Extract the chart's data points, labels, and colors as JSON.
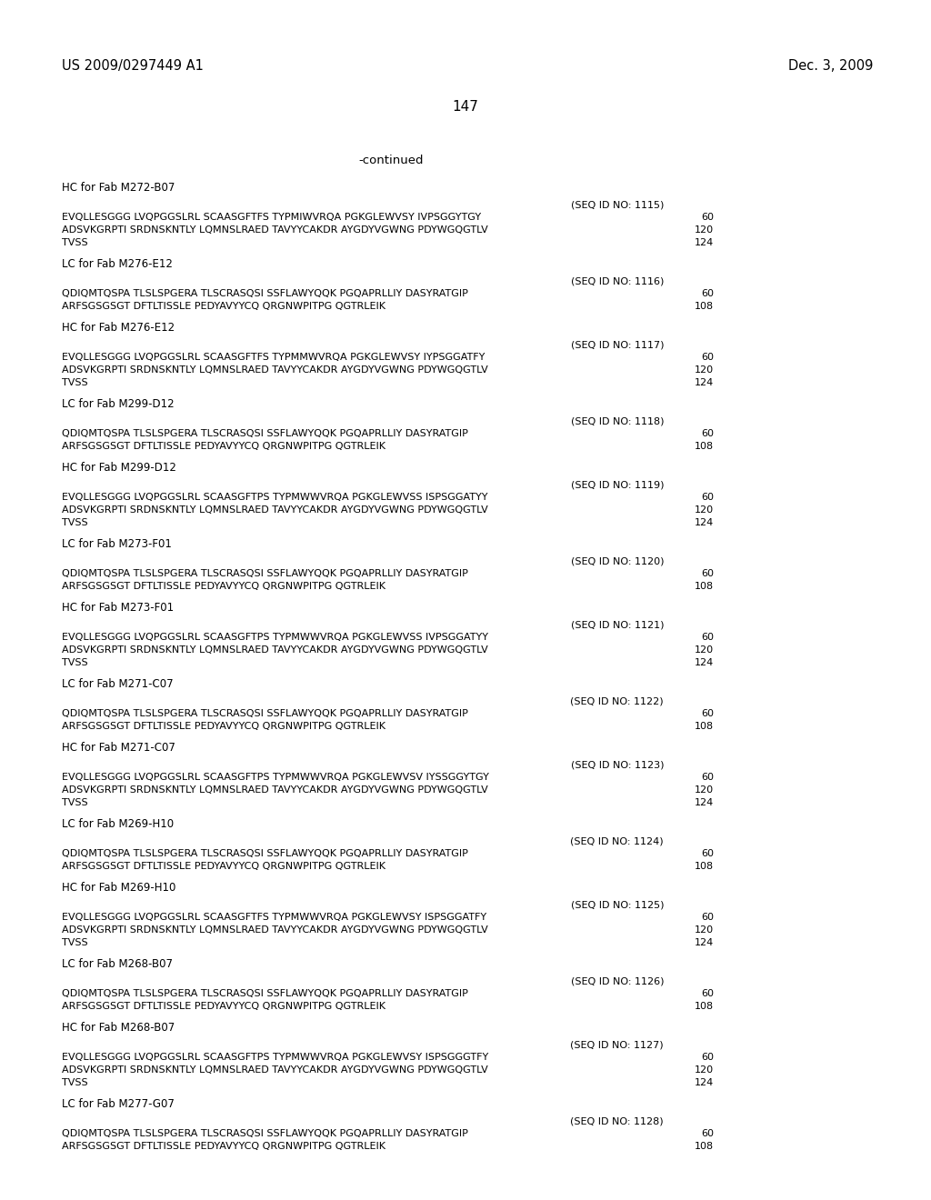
{
  "patent_number": "US 2009/0297449 A1",
  "date": "Dec. 3, 2009",
  "page_number": "147",
  "continued": "-continued",
  "background_color": "#ffffff",
  "text_color": "#000000",
  "sections": [
    {
      "header": "HC for Fab M272-B07",
      "seq_id": "(SEQ ID NO: 1115)",
      "lines": [
        {
          "text": "EVQLLESGGG LVQPGGSLRL SCAASGFTFS TYPMIWVRQA PGKGLEWVSY IVPSGGYTGY",
          "num": "60"
        },
        {
          "text": "ADSVKGRPTI SRDNSKNTLY LQMNSLRAED TAVYYCAKDR AYGDYVGWNG PDYWGQGTLV",
          "num": "120"
        },
        {
          "text": "TVSS",
          "num": "124"
        }
      ]
    },
    {
      "header": "LC for Fab M276-E12",
      "seq_id": "(SEQ ID NO: 1116)",
      "lines": [
        {
          "text": "QDIQMTQSPA TLSLSPGERA TLSCRASQSI SSFLAWYQQK PGQAPRLLIY DASYRATGIP",
          "num": "60"
        },
        {
          "text": "ARFSGSGSGT DFTLTISSLE PEDYAVYYCQ QRGNWPITPG QGTRLEIK",
          "num": "108"
        }
      ]
    },
    {
      "header": "HC for Fab M276-E12",
      "seq_id": "(SEQ ID NO: 1117)",
      "lines": [
        {
          "text": "EVQLLESGGG LVQPGGSLRL SCAASGFTFS TYPMMWVRQA PGKGLEWVSY IYPSGGATFY",
          "num": "60"
        },
        {
          "text": "ADSVKGRPTI SRDNSKNTLY LQMNSLRAED TAVYYCAKDR AYGDYVGWNG PDYWGQGTLV",
          "num": "120"
        },
        {
          "text": "TVSS",
          "num": "124"
        }
      ]
    },
    {
      "header": "LC for Fab M299-D12",
      "seq_id": "(SEQ ID NO: 1118)",
      "lines": [
        {
          "text": "QDIQMTQSPA TLSLSPGERA TLSCRASQSI SSFLAWYQQK PGQAPRLLIY DASYRATGIP",
          "num": "60"
        },
        {
          "text": "ARFSGSGSGT DFTLTISSLE PEDYAVYYCQ QRGNWPITPG QGTRLEIK",
          "num": "108"
        }
      ]
    },
    {
      "header": "HC for Fab M299-D12",
      "seq_id": "(SEQ ID NO: 1119)",
      "lines": [
        {
          "text": "EVQLLESGGG LVQPGGSLRL SCAASGFTPS TYPMWWVRQA PGKGLEWVSS ISPSGGATYY",
          "num": "60"
        },
        {
          "text": "ADSVKGRPTI SRDNSKNTLY LQMNSLRAED TAVYYCAKDR AYGDYVGWNG PDYWGQGTLV",
          "num": "120"
        },
        {
          "text": "TVSS",
          "num": "124"
        }
      ]
    },
    {
      "header": "LC for Fab M273-F01",
      "seq_id": "(SEQ ID NO: 1120)",
      "lines": [
        {
          "text": "QDIQMTQSPA TLSLSPGERA TLSCRASQSI SSFLAWYQQK PGQAPRLLIY DASYRATGIP",
          "num": "60"
        },
        {
          "text": "ARFSGSGSGT DFTLTISSLE PEDYAVYYCQ QRGNWPITPG QGTRLEIK",
          "num": "108"
        }
      ]
    },
    {
      "header": "HC for Fab M273-F01",
      "seq_id": "(SEQ ID NO: 1121)",
      "lines": [
        {
          "text": "EVQLLESGGG LVQPGGSLRL SCAASGFTPS TYPMWWVRQA PGKGLEWVSS IVPSGGATYY",
          "num": "60"
        },
        {
          "text": "ADSVKGRPTI SRDNSKNTLY LQMNSLRAED TAVYYCAKDR AYGDYVGWNG PDYWGQGTLV",
          "num": "120"
        },
        {
          "text": "TVSS",
          "num": "124"
        }
      ]
    },
    {
      "header": "LC for Fab M271-C07",
      "seq_id": "(SEQ ID NO: 1122)",
      "lines": [
        {
          "text": "QDIQMTQSPA TLSLSPGERA TLSCRASQSI SSFLAWYQQK PGQAPRLLIY DASYRATGIP",
          "num": "60"
        },
        {
          "text": "ARFSGSGSGT DFTLTISSLE PEDYAVYYCQ QRGNWPITPG QGTRLEIK",
          "num": "108"
        }
      ]
    },
    {
      "header": "HC for Fab M271-C07",
      "seq_id": "(SEQ ID NO: 1123)",
      "lines": [
        {
          "text": "EVQLLESGGG LVQPGGSLRL SCAASGFTPS TYPMWWVRQA PGKGLEWVSV IYSSGGYTGY",
          "num": "60"
        },
        {
          "text": "ADSVKGRPTI SRDNSKNTLY LQMNSLRAED TAVYYCAKDR AYGDYVGWNG PDYWGQGTLV",
          "num": "120"
        },
        {
          "text": "TVSS",
          "num": "124"
        }
      ]
    },
    {
      "header": "LC for Fab M269-H10",
      "seq_id": "(SEQ ID NO: 1124)",
      "lines": [
        {
          "text": "QDIQMTQSPA TLSLSPGERA TLSCRASQSI SSFLAWYQQK PGQAPRLLIY DASYRATGIP",
          "num": "60"
        },
        {
          "text": "ARFSGSGSGT DFTLTISSLE PEDYAVYYCQ QRGNWPITPG QGTRLEIK",
          "num": "108"
        }
      ]
    },
    {
      "header": "HC for Fab M269-H10",
      "seq_id": "(SEQ ID NO: 1125)",
      "lines": [
        {
          "text": "EVQLLESGGG LVQPGGSLRL SCAASGFTFS TYPMWWVRQA PGKGLEWVSY ISPSGGATFY",
          "num": "60"
        },
        {
          "text": "ADSVKGRPTI SRDNSKNTLY LQMNSLRAED TAVYYCAKDR AYGDYVGWNG PDYWGQGTLV",
          "num": "120"
        },
        {
          "text": "TVSS",
          "num": "124"
        }
      ]
    },
    {
      "header": "LC for Fab M268-B07",
      "seq_id": "(SEQ ID NO: 1126)",
      "lines": [
        {
          "text": "QDIQMTQSPA TLSLSPGERA TLSCRASQSI SSFLAWYQQK PGQAPRLLIY DASYRATGIP",
          "num": "60"
        },
        {
          "text": "ARFSGSGSGT DFTLTISSLE PEDYAVYYCQ QRGNWPITPG QGTRLEIK",
          "num": "108"
        }
      ]
    },
    {
      "header": "HC for Fab M268-B07",
      "seq_id": "(SEQ ID NO: 1127)",
      "lines": [
        {
          "text": "EVQLLESGGG LVQPGGSLRL SCAASGFTPS TYPMWWVRQA PGKGLEWVSY ISPSGGGTFY",
          "num": "60"
        },
        {
          "text": "ADSVKGRPTI SRDNSKNTLY LQMNSLRAED TAVYYCAKDR AYGDYVGWNG PDYWGQGTLV",
          "num": "120"
        },
        {
          "text": "TVSS",
          "num": "124"
        }
      ]
    },
    {
      "header": "LC for Fab M277-G07",
      "seq_id": "(SEQ ID NO: 1128)",
      "lines": [
        {
          "text": "QDIQMTQSPA TLSLSPGERA TLSCRASQSI SSFLAWYQQK PGQAPRLLIY DASYRATGIP",
          "num": "60"
        },
        {
          "text": "ARFSGSGSGT DFTLTISSLE PEDYAVYYCQ QRGNWPITPG QGTRLEIK",
          "num": "108"
        }
      ]
    }
  ]
}
